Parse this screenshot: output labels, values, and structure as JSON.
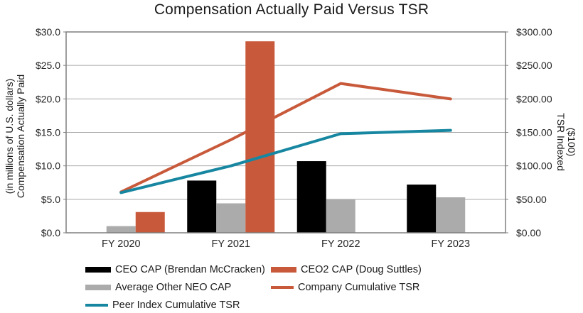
{
  "chart_data": {
    "type": "combo-bar-line",
    "title": "Compensation Actually Paid Versus TSR",
    "categories": [
      "FY 2020",
      "FY 2021",
      "FY 2022",
      "FY 2023"
    ],
    "grid": true,
    "legend_position": "bottom",
    "left_axis": {
      "title_line1": "Compensation Actually Paid",
      "title_line2": "(in millions of U.S. dollars)",
      "min": 0,
      "max": 30,
      "step": 5,
      "tick_labels": [
        "$0.0",
        "$5.0",
        "$10.0",
        "$15.0",
        "$20.0",
        "$25.0",
        "$30.0"
      ]
    },
    "right_axis": {
      "title_line1": "TSR Indexed",
      "title_line2": "($100)",
      "min": 0,
      "max": 300,
      "step": 50,
      "tick_labels": [
        "$0.00",
        "$50.00",
        "$100.00",
        "$150.00",
        "$200.00",
        "$250.00",
        "$300.00"
      ]
    },
    "bar_series": [
      {
        "name": "CEO CAP (Brendan McCracken)",
        "color": "#000000",
        "axis": "left",
        "values": [
          null,
          7.8,
          10.7,
          7.2
        ]
      },
      {
        "name": "Average Other NEO CAP",
        "color": "#ABABAB",
        "axis": "left",
        "values": [
          1.0,
          4.4,
          5.0,
          5.3
        ]
      },
      {
        "name": "CEO2 CAP (Doug Suttles)",
        "color": "#C85A3B",
        "axis": "left",
        "values": [
          3.1,
          28.6,
          null,
          null
        ]
      }
    ],
    "line_series": [
      {
        "name": "Company Cumulative TSR",
        "color": "#C85A3B",
        "axis": "right",
        "values": [
          61,
          139,
          223,
          200
        ]
      },
      {
        "name": "Peer Index Cumulative TSR",
        "color": "#1787A1",
        "axis": "right",
        "values": [
          60,
          100,
          148,
          153
        ]
      }
    ],
    "legend": {
      "items": [
        {
          "label": "CEO CAP (Brendan McCracken)",
          "marker": "bar",
          "color": "#000000"
        },
        {
          "label": "CEO2 CAP (Doug Suttles)",
          "marker": "bar",
          "color": "#C85A3B"
        },
        {
          "label": "Average Other NEO CAP",
          "marker": "bar",
          "color": "#ABABAB"
        },
        {
          "label": "Company Cumulative TSR",
          "marker": "line",
          "color": "#C85A3B"
        },
        {
          "label": "Peer Index Cumulative TSR",
          "marker": "line",
          "color": "#1787A1"
        }
      ]
    },
    "style": {
      "gridline_color": "#A6A6A6",
      "border_color": "#7F7F7F",
      "background": "#FFFFFF"
    }
  }
}
